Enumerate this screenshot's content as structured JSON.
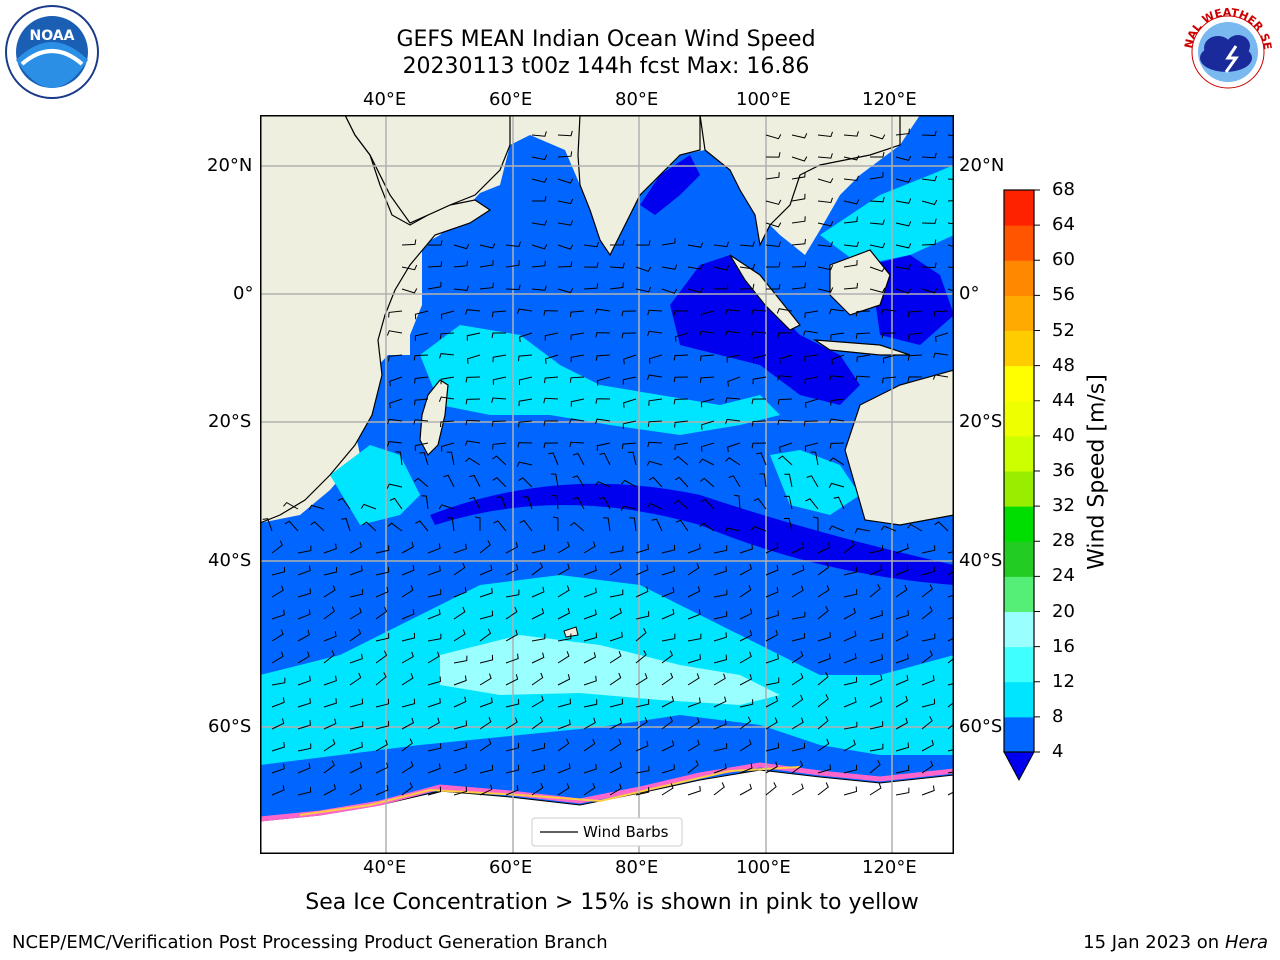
{
  "header": {
    "title_line1": "GEFS MEAN Indian Ocean Wind Speed",
    "title_line2": "20230113 t00z 144h fcst   Max: 16.86"
  },
  "logos": {
    "left_text": "NOAA",
    "right_text": "NATIONAL WEATHER SERVICE"
  },
  "map": {
    "lon_ticks": [
      "40°E",
      "60°E",
      "80°E",
      "100°E",
      "120°E"
    ],
    "lat_ticks": [
      "20°N",
      "0°",
      "20°S",
      "40°S",
      "60°S"
    ],
    "legend": {
      "wind_barbs": "Wind Barbs"
    },
    "colors": {
      "land": "#efefdf",
      "grid": "#b0b0b0"
    }
  },
  "colorbar": {
    "label": "Wind Speed [m/s]",
    "ticks": [
      "4",
      "8",
      "12",
      "16",
      "20",
      "24",
      "28",
      "32",
      "36",
      "40",
      "44",
      "48",
      "52",
      "56",
      "60",
      "64",
      "68"
    ],
    "colors": [
      "#0066ff",
      "#00e5ff",
      "#40ffff",
      "#99ffff",
      "#55ee77",
      "#22cc22",
      "#00dd00",
      "#99ee00",
      "#ccff00",
      "#eeff00",
      "#ffff00",
      "#ffcc00",
      "#ffaa00",
      "#ff8800",
      "#ff5500",
      "#ff2200"
    ],
    "under_color": "#0000ee"
  },
  "footer": {
    "caption": "Sea Ice Concentration > 15% is shown in pink to yellow",
    "left": "NCEP/EMC/Verification Post Processing Product Generation Branch",
    "date": "15 Jan 2023 on",
    "machine": "Hera"
  }
}
